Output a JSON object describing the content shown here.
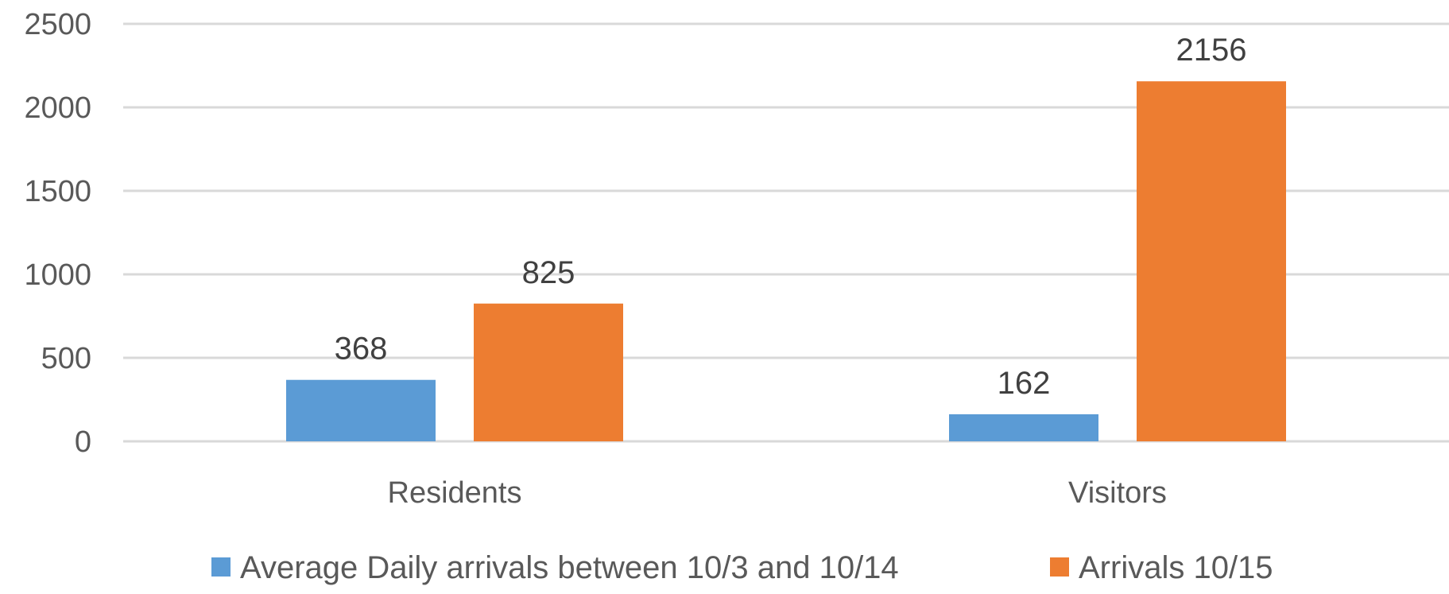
{
  "chart_data": {
    "type": "bar",
    "categories": [
      "Residents",
      "Visitors"
    ],
    "series": [
      {
        "name": "Average Daily arrivals between 10/3 and 10/14",
        "values": [
          368,
          162
        ],
        "color": "#5b9bd5"
      },
      {
        "name": "Arrivals 10/15",
        "values": [
          825,
          2156
        ],
        "color": "#ed7d31"
      }
    ],
    "y_ticks": [
      "0",
      "500",
      "1000",
      "1500",
      "2000",
      "2500"
    ],
    "ylim": [
      0,
      2500
    ],
    "grid": true,
    "legend_position": "bottom",
    "data_labels": true
  }
}
